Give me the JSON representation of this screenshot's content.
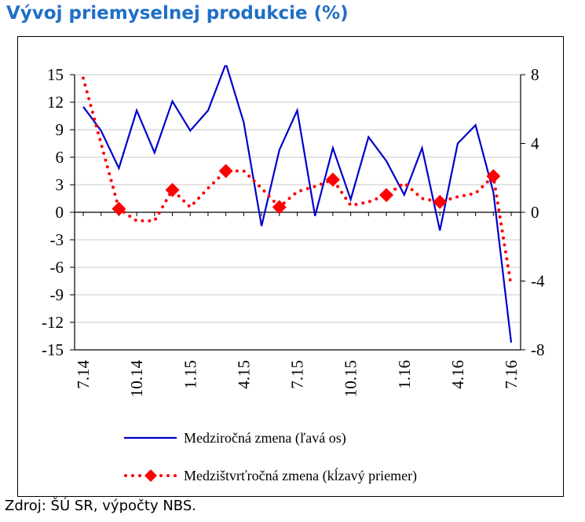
{
  "header": {
    "title": "Vývoj priemyselnej produkcie (%)"
  },
  "source": "Zdroj: ŠÚ SR, výpočty NBS.",
  "chart_data": {
    "type": "line",
    "title": "Vývoj priemyselnej produkcie (%)",
    "categories": [
      "7.14",
      "8.14",
      "9.14",
      "10.14",
      "11.14",
      "12.14",
      "1.15",
      "2.15",
      "3.15",
      "4.15",
      "5.15",
      "6.15",
      "7.15",
      "8.15",
      "9.15",
      "10.15",
      "11.15",
      "12.15",
      "1.16",
      "2.16",
      "3.16",
      "4.16",
      "5.16",
      "6.16",
      "7.16"
    ],
    "x_tick_labels": [
      "7.14",
      "10.14",
      "1.15",
      "4.15",
      "7.15",
      "10.15",
      "1.16",
      "4.16",
      "7.16"
    ],
    "y_left": {
      "ylim": [
        -15,
        15
      ],
      "ticks": [
        "15",
        "12",
        "9",
        "6",
        "3",
        "0",
        "-3",
        "-6",
        "-9",
        "-12",
        "-15"
      ]
    },
    "y_right": {
      "ylim": [
        -8,
        8
      ],
      "ticks": [
        "8",
        "4",
        "0",
        "-4",
        "-8"
      ]
    },
    "grid": true,
    "legend_position": "bottom",
    "series": [
      {
        "name": "Medziročná zmena (ľavá os)",
        "axis": "left",
        "color": "#0000cc",
        "style": "solid",
        "values": [
          11.5,
          8.9,
          4.8,
          11.1,
          6.5,
          12.1,
          8.9,
          11.1,
          16.2,
          9.8,
          -1.5,
          6.8,
          11.1,
          -0.4,
          7.0,
          1.4,
          8.2,
          5.6,
          1.9,
          7.0,
          -2.0,
          7.5,
          9.5,
          2.2,
          -14.2
        ]
      },
      {
        "name": "Medzištvrťročná zmena (kĺzavý priemer)",
        "axis": "right",
        "color": "#ff0000",
        "style": "dotted",
        "markers_at": [
          2,
          5,
          8,
          11,
          14,
          17,
          20,
          23
        ],
        "values": [
          7.8,
          4.0,
          0.2,
          -0.5,
          -0.5,
          1.3,
          0.3,
          1.4,
          2.4,
          2.4,
          1.4,
          0.3,
          1.2,
          1.5,
          1.9,
          0.4,
          0.6,
          1.0,
          1.7,
          0.8,
          0.6,
          0.9,
          1.1,
          2.1,
          -4.3
        ]
      }
    ]
  }
}
